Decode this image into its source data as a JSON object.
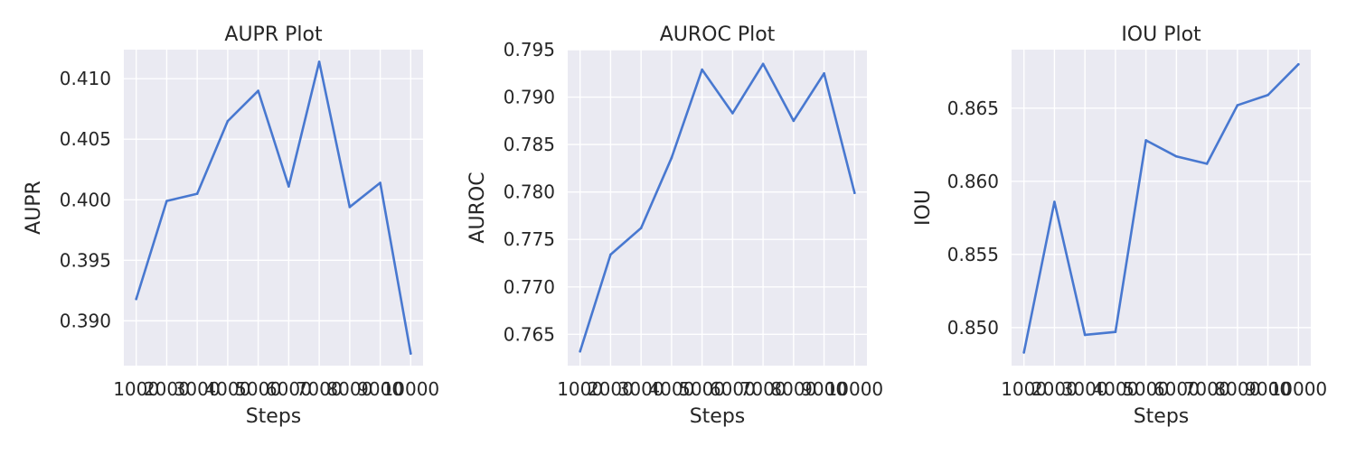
{
  "chart_data": [
    {
      "type": "line",
      "title": "AUPR Plot",
      "xlabel": "Steps",
      "ylabel": "AUPR",
      "x": [
        1000,
        2000,
        3000,
        4000,
        5000,
        6000,
        7000,
        8000,
        9000,
        10000
      ],
      "y": [
        0.3918,
        0.3999,
        0.4005,
        0.4065,
        0.409,
        0.4011,
        0.4114,
        0.3994,
        0.4014,
        0.3873
      ],
      "x_tick_labels": [
        "1000",
        "2000",
        "3000",
        "4000",
        "5000",
        "6000",
        "7000",
        "8000",
        "9000",
        "10000"
      ],
      "y_ticks": [
        0.39,
        0.395,
        0.4,
        0.405,
        0.41
      ],
      "y_tick_labels": [
        "0.390",
        "0.395",
        "0.400",
        "0.405",
        "0.410"
      ],
      "ylim": [
        0.3863,
        0.4124
      ],
      "color": "#4878d0",
      "grid": true
    },
    {
      "type": "line",
      "title": "AUROC Plot",
      "xlabel": "Steps",
      "ylabel": "AUROC",
      "x": [
        1000,
        2000,
        3000,
        4000,
        5000,
        6000,
        7000,
        8000,
        9000,
        10000
      ],
      "y": [
        0.7632,
        0.7734,
        0.7762,
        0.7836,
        0.7929,
        0.7883,
        0.7935,
        0.7875,
        0.7925,
        0.7799
      ],
      "x_tick_labels": [
        "1000",
        "2000",
        "3000",
        "4000",
        "5000",
        "6000",
        "7000",
        "8000",
        "9000",
        "10000"
      ],
      "y_ticks": [
        0.765,
        0.77,
        0.775,
        0.78,
        0.785,
        0.79,
        0.795
      ],
      "y_tick_labels": [
        "0.765",
        "0.770",
        "0.775",
        "0.780",
        "0.785",
        "0.790",
        "0.795"
      ],
      "ylim": [
        0.7617,
        0.795
      ],
      "color": "#4878d0",
      "grid": true
    },
    {
      "type": "line",
      "title": "IOU Plot",
      "xlabel": "Steps",
      "ylabel": "IOU",
      "x": [
        1000,
        2000,
        3000,
        4000,
        5000,
        6000,
        7000,
        8000,
        9000,
        10000
      ],
      "y": [
        0.8483,
        0.8586,
        0.8495,
        0.8497,
        0.8628,
        0.8617,
        0.8612,
        0.8652,
        0.8659,
        0.868
      ],
      "x_tick_labels": [
        "1000",
        "2000",
        "3000",
        "4000",
        "5000",
        "6000",
        "7000",
        "8000",
        "9000",
        "10000"
      ],
      "y_ticks": [
        0.85,
        0.855,
        0.86,
        0.865
      ],
      "y_tick_labels": [
        "0.850",
        "0.855",
        "0.860",
        "0.865"
      ],
      "ylim": [
        0.8474,
        0.869
      ],
      "color": "#4878d0",
      "grid": true
    }
  ]
}
